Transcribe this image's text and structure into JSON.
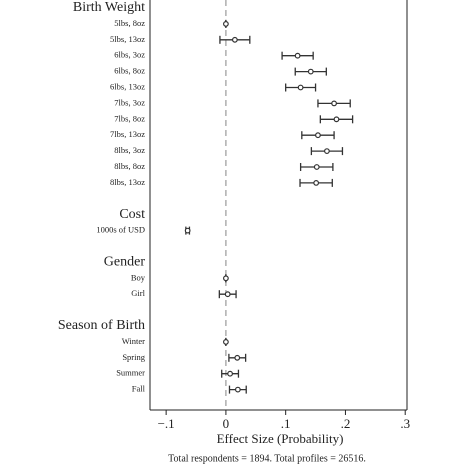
{
  "chart_data": {
    "type": "errorbar",
    "xlabel": "Effect Size (Probability)",
    "note": "Total respondents = 1894.  Total profiles = 26516.",
    "xlim": [
      -0.127,
      0.303
    ],
    "xticks": [
      {
        "value": -0.1,
        "label": "−.1"
      },
      0,
      {
        "value": 0.1,
        "label": ".1"
      },
      {
        "value": 0.2,
        "label": ".2"
      },
      {
        "value": 0.3,
        "label": ".3"
      }
    ],
    "reference_line": 0,
    "color": "#333333",
    "groups": [
      {
        "label": "Birth Weight",
        "categories": [
          "5lbs, 8oz",
          "5lbs, 13oz",
          "6lbs, 3oz",
          "6lbs, 8oz",
          "6lbs, 13oz",
          "7lbs, 3oz",
          "7lbs, 8oz",
          "7lbs, 13oz",
          "8lbs, 3oz",
          "8lbs, 8oz",
          "8lbs, 13oz"
        ],
        "values": [
          0,
          0.015,
          0.12,
          0.142,
          0.125,
          0.181,
          0.185,
          0.154,
          0.169,
          0.152,
          0.151
        ],
        "errors": [
          0,
          0.025,
          0.026,
          0.026,
          0.025,
          0.027,
          0.027,
          0.027,
          0.026,
          0.027,
          0.027
        ]
      },
      {
        "label": "Cost",
        "categories": [
          "1000s of USD"
        ],
        "values": [
          -0.064
        ],
        "errors": [
          0.003
        ]
      },
      {
        "label": "Gender",
        "categories": [
          "Boy",
          "Girl"
        ],
        "values": [
          0,
          0.003
        ],
        "errors": [
          0,
          0.014
        ]
      },
      {
        "label": "Season of Birth",
        "categories": [
          "Winter",
          "Spring",
          "Summer",
          "Fall"
        ],
        "values": [
          0,
          0.019,
          0.007,
          0.02
        ],
        "errors": [
          0,
          0.014,
          0.014,
          0.014
        ]
      }
    ]
  }
}
